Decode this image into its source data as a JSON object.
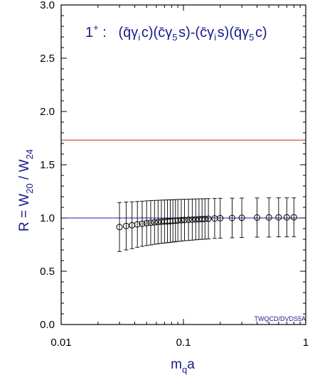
{
  "chart_data": {
    "type": "scatter",
    "title": "",
    "xscale": "log",
    "xlim": [
      0.01,
      1
    ],
    "ylim": [
      0.0,
      3.0
    ],
    "x_tick_values": [
      0.01,
      0.1,
      1
    ],
    "x_tick_labels": [
      "0.01",
      "0.1",
      "1"
    ],
    "y_tick_values": [
      0.0,
      0.5,
      1.0,
      1.5,
      2.0,
      2.5,
      3.0
    ],
    "y_tick_labels": [
      "0.0",
      "0.5",
      "1.0",
      "1.5",
      "2.0",
      "2.5",
      "3.0"
    ],
    "xlabel": {
      "main": "m",
      "sub": "q",
      "tail": "a"
    },
    "ylabel": {
      "p1": "R = W",
      "s1": "20",
      "p2": " / W",
      "s2": "24"
    },
    "annotation": {
      "state": "1",
      "state_sup": "+",
      "state_tail": " :",
      "operator": "(q̄γ_i c)(c̄γ_5 s)-(c̄γ_i s)(q̄γ_5 c)",
      "parts": [
        {
          "t": "(q̄γ",
          "s": "i"
        },
        {
          "t": "c)(c̄γ",
          "s": "5"
        },
        {
          "t": "s)-(c̄γ",
          "s": "i"
        },
        {
          "t": "s)(q̄γ",
          "s": "5"
        },
        {
          "t": "c)",
          "s": ""
        }
      ]
    },
    "watermark": "TWQCD/DVDS5A",
    "reference_lines": [
      {
        "y": 1.7320508,
        "color": "#d62020"
      },
      {
        "y": 1.0,
        "color": "#1f1fa0"
      }
    ],
    "series": [
      {
        "marker": "open-circle",
        "color": "#000000",
        "x": [
          0.03,
          0.034,
          0.038,
          0.042,
          0.046,
          0.05,
          0.054,
          0.058,
          0.062,
          0.066,
          0.07,
          0.074,
          0.078,
          0.082,
          0.086,
          0.09,
          0.096,
          0.102,
          0.11,
          0.118,
          0.126,
          0.134,
          0.142,
          0.15,
          0.16,
          0.18,
          0.2,
          0.25,
          0.3,
          0.4,
          0.5,
          0.6,
          0.7,
          0.8
        ],
        "y": [
          0.915,
          0.925,
          0.932,
          0.94,
          0.946,
          0.951,
          0.955,
          0.959,
          0.962,
          0.965,
          0.967,
          0.969,
          0.971,
          0.973,
          0.975,
          0.977,
          0.979,
          0.981,
          0.983,
          0.985,
          0.987,
          0.989,
          0.99,
          0.991,
          0.993,
          0.996,
          0.998,
          1.0,
          1.002,
          1.004,
          1.005,
          1.006,
          1.006,
          1.007
        ],
        "err": [
          0.23,
          0.225,
          0.22,
          0.215,
          0.212,
          0.21,
          0.208,
          0.206,
          0.204,
          0.203,
          0.202,
          0.201,
          0.2,
          0.199,
          0.198,
          0.197,
          0.196,
          0.195,
          0.194,
          0.193,
          0.192,
          0.191,
          0.19,
          0.19,
          0.189,
          0.188,
          0.187,
          0.186,
          0.185,
          0.184,
          0.184,
          0.183,
          0.183,
          0.182
        ]
      }
    ]
  }
}
